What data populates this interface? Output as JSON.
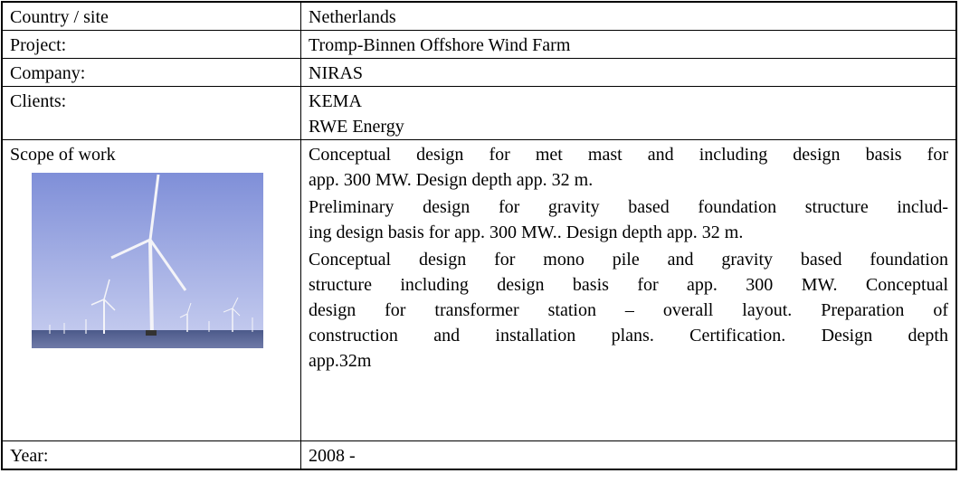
{
  "table": {
    "rows": [
      {
        "label": "Country / site",
        "lines": [
          "Netherlands"
        ]
      },
      {
        "label": "Project:",
        "lines": [
          "Tromp-Binnen Offshore Wind Farm"
        ]
      },
      {
        "label": "Company:",
        "lines": [
          "NIRAS"
        ]
      },
      {
        "label": "Clients:",
        "lines": [
          "KEMA",
          "RWE Energy"
        ]
      },
      {
        "label": "Scope of work",
        "paragraphs": [
          [
            "Conceptual design for met mast and including design basis for",
            "app. 300 MW. Design depth app. 32 m."
          ],
          [
            "Preliminary design for gravity based foundation structure includ-",
            "ing design basis for app. 300 MW.. Design depth app. 32 m."
          ],
          [
            "Conceptual design for mono pile and gravity based foundation",
            "structure including design basis for app. 300 MW. Conceptual",
            "design for transformer station – overall layout. Preparation of",
            "construction and installation plans. Certification. Design depth",
            "app.32m"
          ]
        ]
      },
      {
        "label": "Year:",
        "lines": [
          "2008 -"
        ]
      }
    ]
  }
}
